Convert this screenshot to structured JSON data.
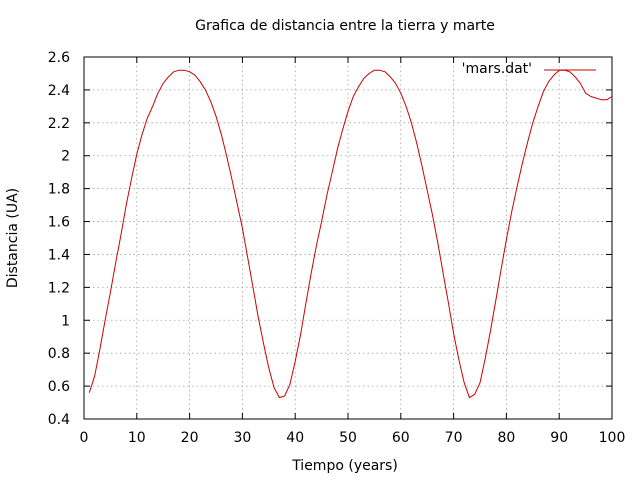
{
  "chart_data": {
    "type": "line",
    "title": "Grafica de distancia entre la tierra y marte",
    "xlabel": "Tiempo (years)",
    "ylabel": "Distancia (UA)",
    "xlim": [
      0,
      100
    ],
    "ylim": [
      0.4,
      2.6
    ],
    "x_ticks": [
      "0",
      "10",
      "20",
      "30",
      "40",
      "50",
      "60",
      "70",
      "80",
      "90",
      "100"
    ],
    "y_ticks": [
      "0.4",
      "0.6",
      "0.8",
      "1",
      "1.2",
      "1.4",
      "1.6",
      "1.8",
      "2",
      "2.2",
      "2.4",
      "2.6"
    ],
    "grid": true,
    "legend_position": "top-right",
    "colors": {
      "series": "#cc0000",
      "grid": "#a0a0a0",
      "axes": "#000000"
    },
    "series": [
      {
        "name": "'mars.dat'",
        "x": [
          1,
          2,
          3,
          4,
          5,
          6,
          7,
          8,
          9,
          10,
          11,
          12,
          13,
          14,
          15,
          16,
          17,
          18,
          19,
          20,
          21,
          22,
          23,
          24,
          25,
          26,
          27,
          28,
          29,
          30,
          31,
          32,
          33,
          34,
          35,
          36,
          37,
          38,
          39,
          40,
          41,
          42,
          43,
          44,
          45,
          46,
          47,
          48,
          49,
          50,
          51,
          52,
          53,
          54,
          55,
          56,
          57,
          58,
          59,
          60,
          61,
          62,
          63,
          64,
          65,
          66,
          67,
          68,
          69,
          70,
          71,
          72,
          73,
          74,
          75,
          76,
          77,
          78,
          79,
          80,
          81,
          82,
          83,
          84,
          85,
          86,
          87,
          88,
          89,
          90,
          91,
          92,
          93,
          94,
          95,
          96,
          97,
          98,
          99,
          100
        ],
        "values": [
          0.56,
          0.66,
          0.82,
          1.0,
          1.17,
          1.35,
          1.52,
          1.7,
          1.86,
          2.01,
          2.13,
          2.23,
          2.3,
          2.38,
          2.44,
          2.48,
          2.51,
          2.52,
          2.52,
          2.51,
          2.49,
          2.45,
          2.4,
          2.33,
          2.24,
          2.13,
          2.0,
          1.86,
          1.71,
          1.56,
          1.38,
          1.2,
          1.02,
          0.86,
          0.71,
          0.59,
          0.53,
          0.54,
          0.61,
          0.75,
          0.91,
          1.1,
          1.28,
          1.45,
          1.6,
          1.76,
          1.9,
          2.04,
          2.16,
          2.27,
          2.36,
          2.42,
          2.47,
          2.5,
          2.52,
          2.52,
          2.51,
          2.48,
          2.44,
          2.38,
          2.3,
          2.2,
          2.08,
          1.94,
          1.79,
          1.64,
          1.47,
          1.29,
          1.11,
          0.92,
          0.76,
          0.62,
          0.53,
          0.55,
          0.62,
          0.77,
          0.94,
          1.12,
          1.31,
          1.49,
          1.66,
          1.81,
          1.95,
          2.08,
          2.2,
          2.3,
          2.39,
          2.45,
          2.49,
          2.52,
          2.52,
          2.51,
          2.48,
          2.44,
          2.38,
          2.36,
          2.35,
          2.34,
          2.34,
          2.36
        ]
      }
    ]
  }
}
